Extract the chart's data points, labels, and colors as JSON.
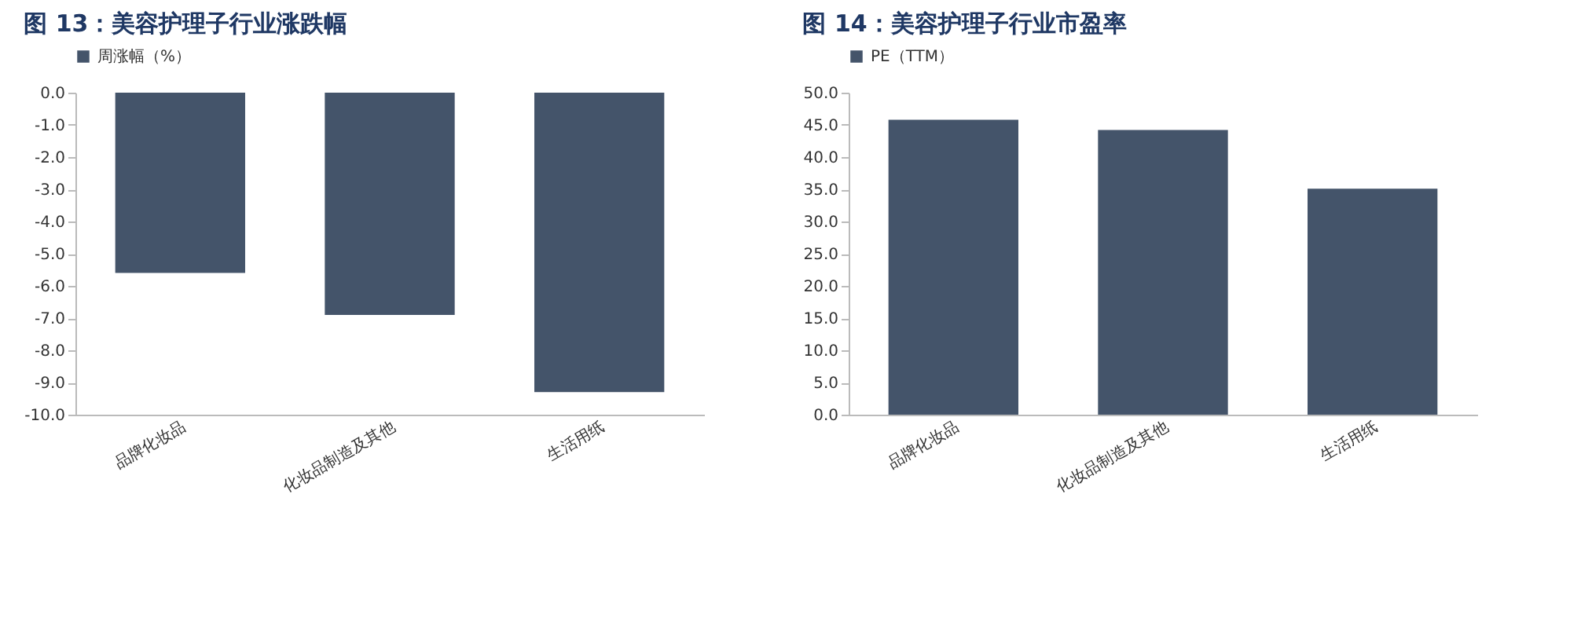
{
  "chart_data": [
    {
      "type": "bar",
      "title": "图 13：美容护理子行业涨跌幅",
      "categories": [
        "品牌化妆品",
        "化妆品制造及其他",
        "生活用纸"
      ],
      "series": [
        {
          "name": "周涨幅（%）",
          "color": "#44546a",
          "values": [
            -5.6,
            -6.9,
            -9.3
          ]
        }
      ],
      "ylim": [
        -10,
        0
      ],
      "yticks": [
        {
          "value": 0,
          "label": "0.0"
        },
        {
          "value": -1,
          "label": "-1.0"
        },
        {
          "value": -2,
          "label": "-2.0"
        },
        {
          "value": -3,
          "label": "-3.0"
        },
        {
          "value": -4,
          "label": "-4.0"
        },
        {
          "value": -5,
          "label": "-5.0"
        },
        {
          "value": -6,
          "label": "-6.0"
        },
        {
          "value": -7,
          "label": "-7.0"
        },
        {
          "value": -8,
          "label": "-8.0"
        },
        {
          "value": -9,
          "label": "-9.0"
        },
        {
          "value": -10,
          "label": "-10.0"
        }
      ],
      "legend": "top",
      "grid": false
    },
    {
      "type": "bar",
      "title": "图 14：美容护理子行业市盈率",
      "categories": [
        "品牌化妆品",
        "化妆品制造及其他",
        "生活用纸"
      ],
      "series": [
        {
          "name": "PE（TTM）",
          "color": "#44546a",
          "values": [
            45.8,
            44.2,
            35.1
          ]
        }
      ],
      "ylim": [
        0,
        50
      ],
      "yticks": [
        {
          "value": 0,
          "label": "0.0"
        },
        {
          "value": 5,
          "label": "5.0"
        },
        {
          "value": 10,
          "label": "10.0"
        },
        {
          "value": 15,
          "label": "15.0"
        },
        {
          "value": 20,
          "label": "20.0"
        },
        {
          "value": 25,
          "label": "25.0"
        },
        {
          "value": 30,
          "label": "30.0"
        },
        {
          "value": 35,
          "label": "35.0"
        },
        {
          "value": 40,
          "label": "40.0"
        },
        {
          "value": 45,
          "label": "45.0"
        },
        {
          "value": 50,
          "label": "50.0"
        }
      ],
      "legend": "top",
      "grid": false
    }
  ]
}
